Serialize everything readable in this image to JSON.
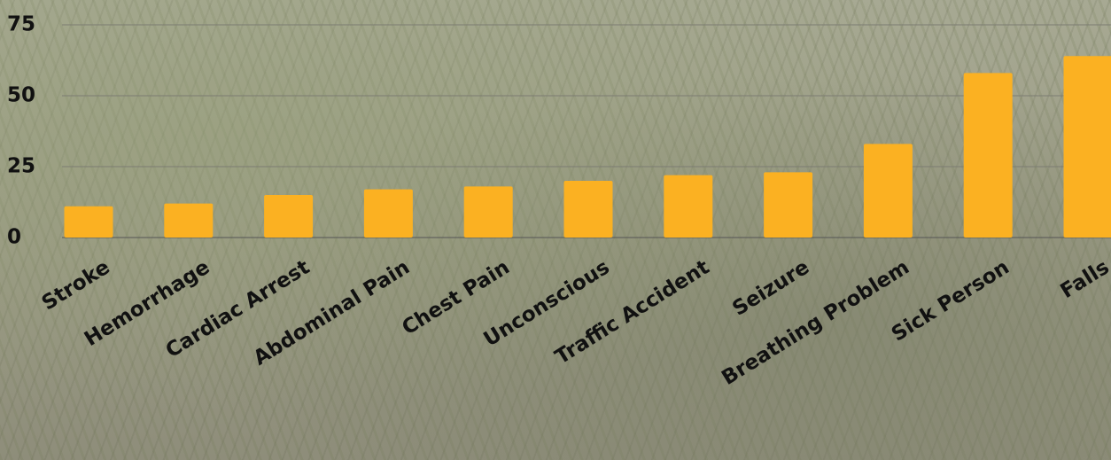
{
  "chart_data": {
    "type": "bar",
    "categories": [
      "Stroke",
      "Hemorrhage",
      "Cardiac Arrest",
      "Abdominal Pain",
      "Chest Pain",
      "Unconscious",
      "Traffic Accident",
      "Seizure",
      "Breathing Problem",
      "Sick Person",
      "Falls"
    ],
    "values": [
      11,
      12,
      15,
      17,
      18,
      20,
      22,
      23,
      33,
      58,
      64
    ],
    "color": "#fbb122",
    "ylim": [
      0,
      75
    ],
    "yticks": [
      0,
      25,
      50,
      75
    ],
    "grid": true
  }
}
